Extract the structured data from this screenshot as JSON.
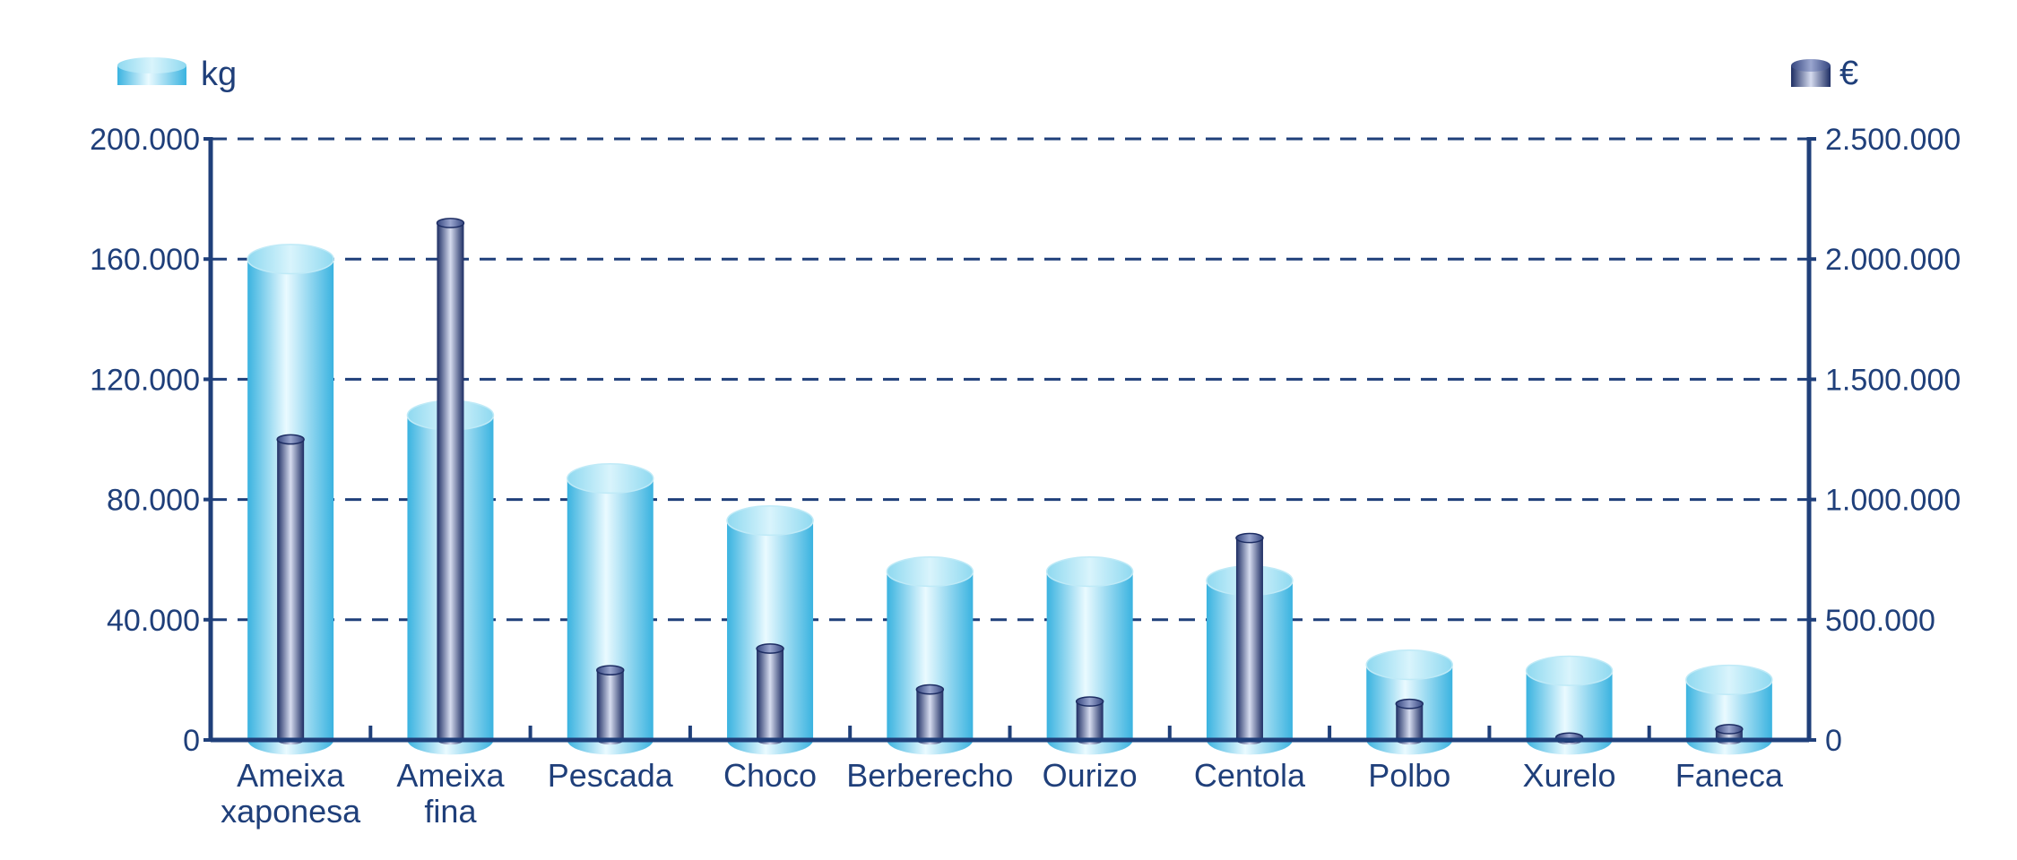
{
  "chart_data": {
    "type": "bar",
    "categories": [
      [
        "Ameixa",
        "xaponesa"
      ],
      [
        "Ameixa",
        "fina"
      ],
      [
        "Pescada"
      ],
      [
        "Choco"
      ],
      [
        "Berberecho"
      ],
      [
        "Ourizo"
      ],
      [
        "Centola"
      ],
      [
        "Polbo"
      ],
      [
        "Xurelo"
      ],
      [
        "Faneca"
      ]
    ],
    "series": [
      {
        "name": "kg",
        "axis": "left",
        "color": "#5cc6e6",
        "values": [
          160000,
          108000,
          87000,
          73000,
          56000,
          56000,
          53000,
          25000,
          23000,
          20000
        ]
      },
      {
        "name": "€",
        "axis": "right",
        "color": "#2b3f7e",
        "values": [
          1250000,
          2150000,
          290000,
          380000,
          210000,
          160000,
          840000,
          150000,
          10000,
          45000
        ]
      }
    ],
    "y_left": {
      "ylim": [
        0,
        200000
      ],
      "ticks": [
        0,
        40000,
        80000,
        120000,
        160000,
        200000
      ],
      "tick_labels": [
        "0",
        "40.000",
        "80.000",
        "120.000",
        "160.000",
        "200.000"
      ]
    },
    "y_right": {
      "ylim": [
        0,
        2500000
      ],
      "ticks": [
        0,
        500000,
        1000000,
        1500000,
        2000000,
        2500000
      ],
      "tick_labels": [
        "0",
        "500.000",
        "1.000.000",
        "1.500.000",
        "2.000.000",
        "2.500.000"
      ]
    },
    "grid": true,
    "grid_style": "dashed",
    "legend": [
      {
        "label": "kg",
        "placement": "top-left"
      },
      {
        "label": "€",
        "placement": "top-right"
      }
    ],
    "colors": {
      "axis": "#1f3f7a",
      "text": "#1f3f7a",
      "kg_light": "#e6f8fd",
      "kg_mid": "#5cc6e6",
      "kg_dark": "#2aa6d6",
      "eur_light": "#d6dcef",
      "eur_mid": "#5b6ea6",
      "eur_dark": "#1d2d63"
    }
  }
}
